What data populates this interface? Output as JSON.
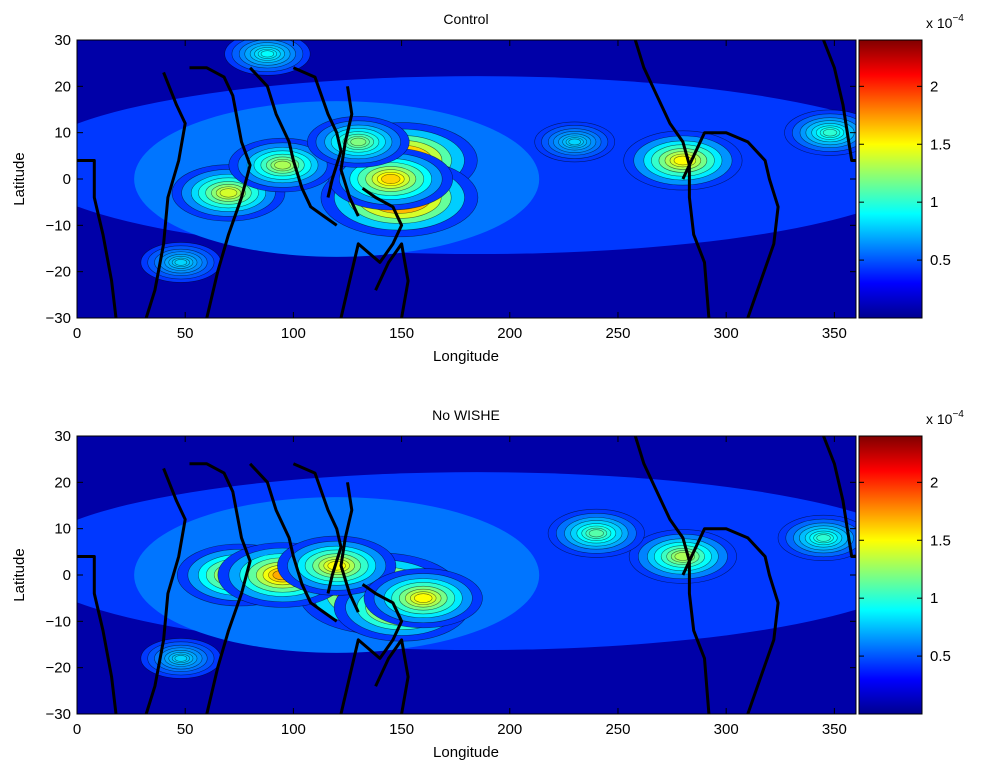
{
  "chart_data": [
    {
      "type": "heatmap",
      "title": "Control",
      "xlabel": "Longitude",
      "ylabel": "Latitude",
      "xlim": [
        0,
        360
      ],
      "ylim": [
        -30,
        30
      ],
      "xticks": [
        "0",
        "50",
        "100",
        "150",
        "200",
        "250",
        "300",
        "350"
      ],
      "yticks": [
        "30",
        "20",
        "10",
        "0",
        "−10",
        "−20",
        "−30"
      ],
      "colorbar": {
        "range": [
          0,
          0.00024
        ],
        "ticks": [
          "0.5",
          "1",
          "1.5",
          "2"
        ],
        "exponent_label": "x 10",
        "exponent_power": "−4",
        "colormap": "jet"
      },
      "hotspots": [
        {
          "lon": 150,
          "lat": 4,
          "value": 2.1
        },
        {
          "lon": 149,
          "lat": -4,
          "value": 2.2
        },
        {
          "lon": 145,
          "lat": 0,
          "value": 1.6
        },
        {
          "lon": 70,
          "lat": -3,
          "value": 1.4
        },
        {
          "lon": 95,
          "lat": 3,
          "value": 1.3
        },
        {
          "lon": 130,
          "lat": 8,
          "value": 1.2
        },
        {
          "lon": 280,
          "lat": 4,
          "value": 1.5
        },
        {
          "lon": 348,
          "lat": 10,
          "value": 1.0
        },
        {
          "lon": 88,
          "lat": 27,
          "value": 0.9
        },
        {
          "lon": 48,
          "lat": -18,
          "value": 0.8
        },
        {
          "lon": 230,
          "lat": 8,
          "value": 0.8
        }
      ]
    },
    {
      "type": "heatmap",
      "title": "No WISHE",
      "xlabel": "Longitude",
      "ylabel": "Latitude",
      "xlim": [
        0,
        360
      ],
      "ylim": [
        -30,
        30
      ],
      "xticks": [
        "0",
        "50",
        "100",
        "150",
        "200",
        "250",
        "300",
        "350"
      ],
      "yticks": [
        "30",
        "20",
        "10",
        "0",
        "−10",
        "−20",
        "−30"
      ],
      "colorbar": {
        "range": [
          0,
          0.00024
        ],
        "ticks": [
          "0.5",
          "1",
          "1.5",
          "2"
        ],
        "exponent_label": "x 10",
        "exponent_power": "−4",
        "colormap": "jet"
      },
      "hotspots": [
        {
          "lon": 140,
          "lat": -4,
          "value": 2.3
        },
        {
          "lon": 150,
          "lat": -7,
          "value": 1.8
        },
        {
          "lon": 75,
          "lat": 0,
          "value": 1.6
        },
        {
          "lon": 95,
          "lat": 0,
          "value": 1.7
        },
        {
          "lon": 120,
          "lat": 2,
          "value": 1.5
        },
        {
          "lon": 160,
          "lat": -5,
          "value": 1.5
        },
        {
          "lon": 280,
          "lat": 4,
          "value": 1.3
        },
        {
          "lon": 240,
          "lat": 9,
          "value": 1.1
        },
        {
          "lon": 345,
          "lat": 8,
          "value": 1.0
        },
        {
          "lon": 48,
          "lat": -18,
          "value": 0.8
        }
      ]
    }
  ]
}
